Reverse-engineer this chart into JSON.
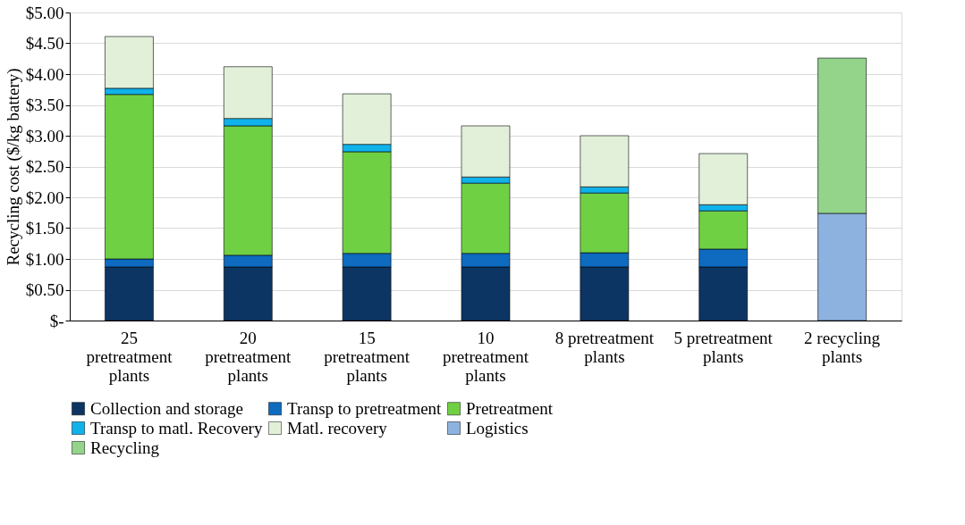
{
  "chart_data": {
    "type": "bar",
    "stacked": true,
    "ylabel": "Recycling cost ($/kg battery)",
    "categories": [
      "25 pretreatment plants",
      "20 pretreatment plants",
      "15 pretreatment plants",
      "10 pretreatment plants",
      "8 pretreatment plants",
      "5 pretreatment plants",
      "2 recycling plants"
    ],
    "series": [
      {
        "name": "Collection and storage",
        "color": "#0d3563",
        "values": [
          0.87,
          0.87,
          0.87,
          0.87,
          0.87,
          0.87,
          null
        ]
      },
      {
        "name": "Transp to pretreatment",
        "color": "#0e6bbf",
        "values": [
          0.13,
          0.19,
          0.22,
          0.22,
          0.23,
          0.29,
          null
        ]
      },
      {
        "name": "Pretreatment",
        "color": "#70d044",
        "values": [
          2.67,
          2.1,
          1.65,
          1.14,
          0.97,
          0.62,
          null
        ]
      },
      {
        "name": "Transp to matl. Recovery",
        "color": "#10b2ea",
        "values": [
          0.1,
          0.12,
          0.12,
          0.1,
          0.1,
          0.1,
          null
        ]
      },
      {
        "name": "Matl. recovery",
        "color": "#e2f0d9",
        "values": [
          0.84,
          0.84,
          0.82,
          0.83,
          0.83,
          0.83,
          null
        ]
      },
      {
        "name": "Logistics",
        "color": "#8eb2e0",
        "values": [
          null,
          null,
          null,
          null,
          null,
          null,
          1.74
        ]
      },
      {
        "name": "Recycling",
        "color": "#93d48a",
        "values": [
          null,
          null,
          null,
          null,
          null,
          null,
          2.52
        ]
      }
    ],
    "ylim": [
      0,
      5
    ],
    "yticks": [
      {
        "value": 0,
        "label": "$-"
      },
      {
        "value": 0.5,
        "label": "$0.50"
      },
      {
        "value": 1,
        "label": "$1.00"
      },
      {
        "value": 1.5,
        "label": "$1.50"
      },
      {
        "value": 2,
        "label": "$2.00"
      },
      {
        "value": 2.5,
        "label": "$2.50"
      },
      {
        "value": 3,
        "label": "$3.00"
      },
      {
        "value": 3.5,
        "label": "$3.50"
      },
      {
        "value": 4,
        "label": "$4.00"
      },
      {
        "value": 4.5,
        "label": "$4.50"
      },
      {
        "value": 5,
        "label": "$5.00"
      }
    ],
    "grid": "y",
    "legend": "bottom"
  }
}
